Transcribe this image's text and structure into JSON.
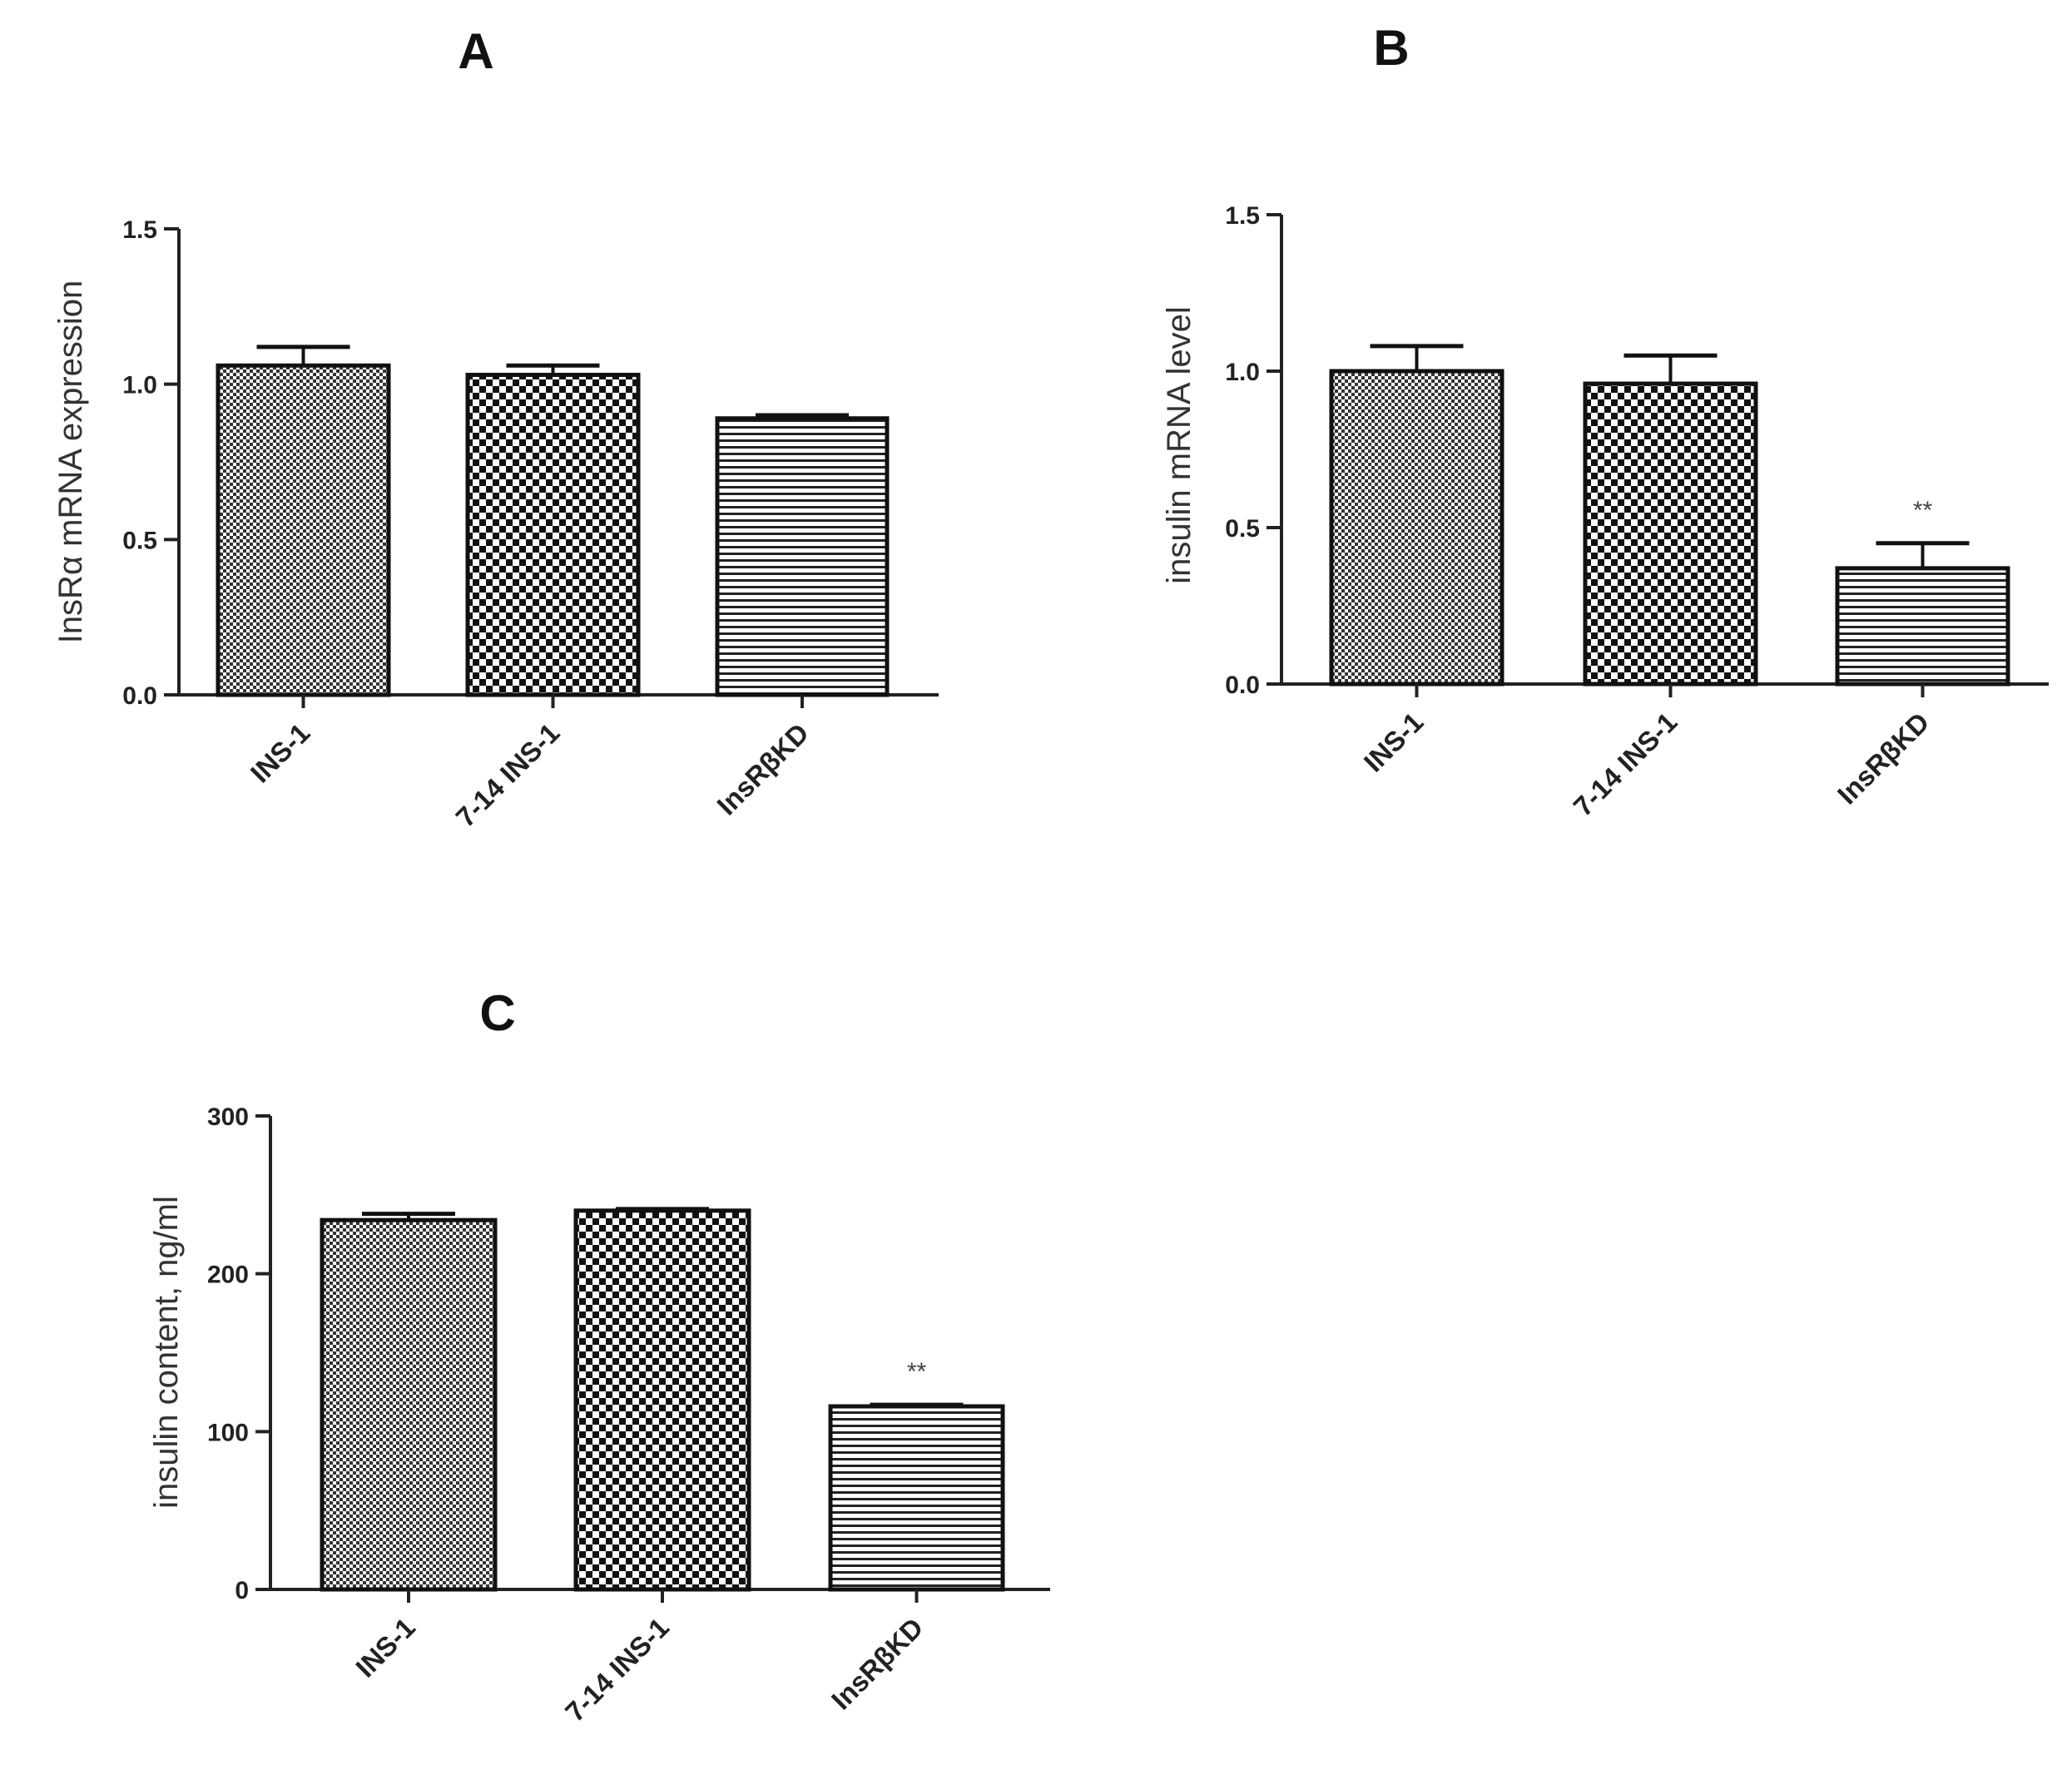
{
  "chart_data": [
    {
      "type": "bar",
      "panel_label": "A",
      "categories": [
        "INS-1",
        "7-14 INS-1",
        "InsRβKD"
      ],
      "values": [
        1.06,
        1.03,
        0.89
      ],
      "errors": [
        0.06,
        0.03,
        0.01
      ],
      "significance": [
        "",
        "",
        ""
      ],
      "patterns": [
        "fine-check",
        "check",
        "hstripe"
      ],
      "ylabel": "InsRα mRNA expression",
      "ylim": [
        0,
        1.5
      ],
      "yticks": [
        "0.0",
        "0.5",
        "1.0",
        "1.5"
      ],
      "grid": false
    },
    {
      "type": "bar",
      "panel_label": "B",
      "categories": [
        "INS-1",
        "7-14 INS-1",
        "InsRβKD"
      ],
      "values": [
        1.0,
        0.96,
        0.37
      ],
      "errors": [
        0.08,
        0.09,
        0.08
      ],
      "significance": [
        "",
        "",
        "**"
      ],
      "patterns": [
        "fine-check",
        "check",
        "hstripe"
      ],
      "ylabel": "insulin mRNA level",
      "ylim": [
        0,
        1.5
      ],
      "yticks": [
        "0.0",
        "0.5",
        "1.0",
        "1.5"
      ],
      "grid": false
    },
    {
      "type": "bar",
      "panel_label": "C",
      "categories": [
        "INS-1",
        "7-14 INS-1",
        "InsRβKD"
      ],
      "values": [
        234,
        240,
        116
      ],
      "errors": [
        4,
        1,
        1
      ],
      "significance": [
        "",
        "",
        "**"
      ],
      "patterns": [
        "fine-check",
        "check",
        "hstripe"
      ],
      "ylabel": "insulin content, ng/ml",
      "ylim": [
        0,
        300
      ],
      "yticks": [
        "0",
        "100",
        "200",
        "300"
      ],
      "grid": false
    }
  ]
}
